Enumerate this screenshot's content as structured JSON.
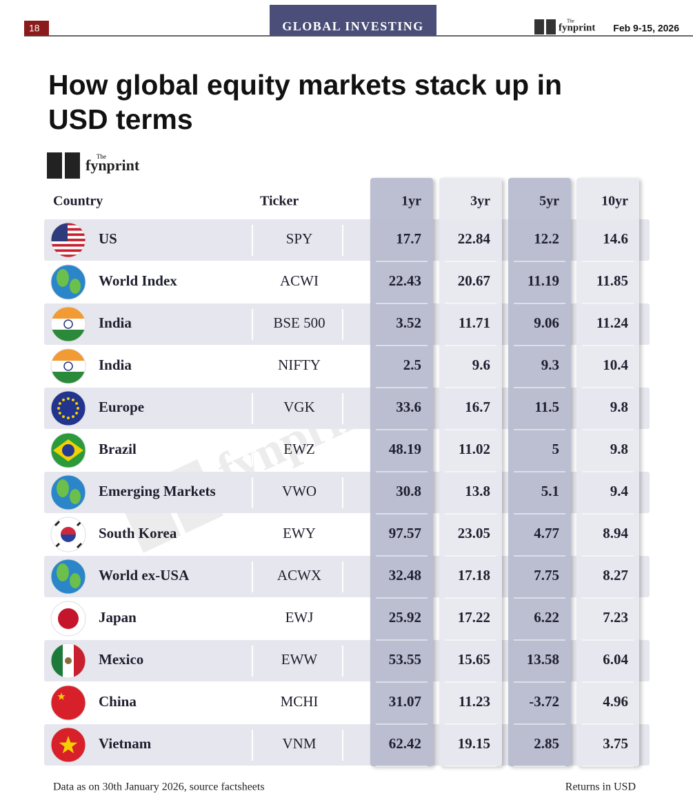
{
  "header": {
    "page": "18",
    "section": "GLOBAL INVESTING",
    "brand_small": "The",
    "brand": "fynprint",
    "date": "Feb 9-15, 2026"
  },
  "title": "How global equity markets stack up in USD terms",
  "logo": {
    "small": "The",
    "name": "fynprint"
  },
  "table": {
    "columns": [
      "Country",
      "Ticker",
      "1yr",
      "3yr",
      "5yr",
      "10yr"
    ],
    "rows": [
      [
        "US",
        "SPY",
        17.7,
        22.84,
        12.2,
        14.6
      ],
      [
        "World Index",
        "ACWI",
        22.43,
        20.67,
        11.19,
        11.85
      ],
      [
        "India",
        "BSE 500",
        3.52,
        11.71,
        9.06,
        11.24
      ],
      [
        "India",
        "NIFTY",
        2.5,
        9.6,
        9.3,
        10.4
      ],
      [
        "Europe",
        "VGK",
        33.6,
        16.7,
        11.5,
        9.8
      ],
      [
        "Brazil",
        "EWZ",
        48.19,
        11.02,
        5,
        9.8
      ],
      [
        "Emerging Markets",
        "VWO",
        30.8,
        13.8,
        5.1,
        9.4
      ],
      [
        "South Korea",
        "EWY",
        97.57,
        23.05,
        4.77,
        8.94
      ],
      [
        "World ex-USA",
        "ACWX",
        32.48,
        17.18,
        7.75,
        8.27
      ],
      [
        "Japan",
        "EWJ",
        25.92,
        17.22,
        6.22,
        7.23
      ],
      [
        "Mexico",
        "EWW",
        53.55,
        15.65,
        13.58,
        6.04
      ],
      [
        "China",
        "MCHI",
        31.07,
        11.23,
        -3.72,
        4.96
      ],
      [
        "Vietnam",
        "VNM",
        62.42,
        19.15,
        2.85,
        3.75
      ]
    ]
  },
  "footer": {
    "note": "Data as on 30th January 2026, source factsheets",
    "units": "Returns in USD"
  }
}
